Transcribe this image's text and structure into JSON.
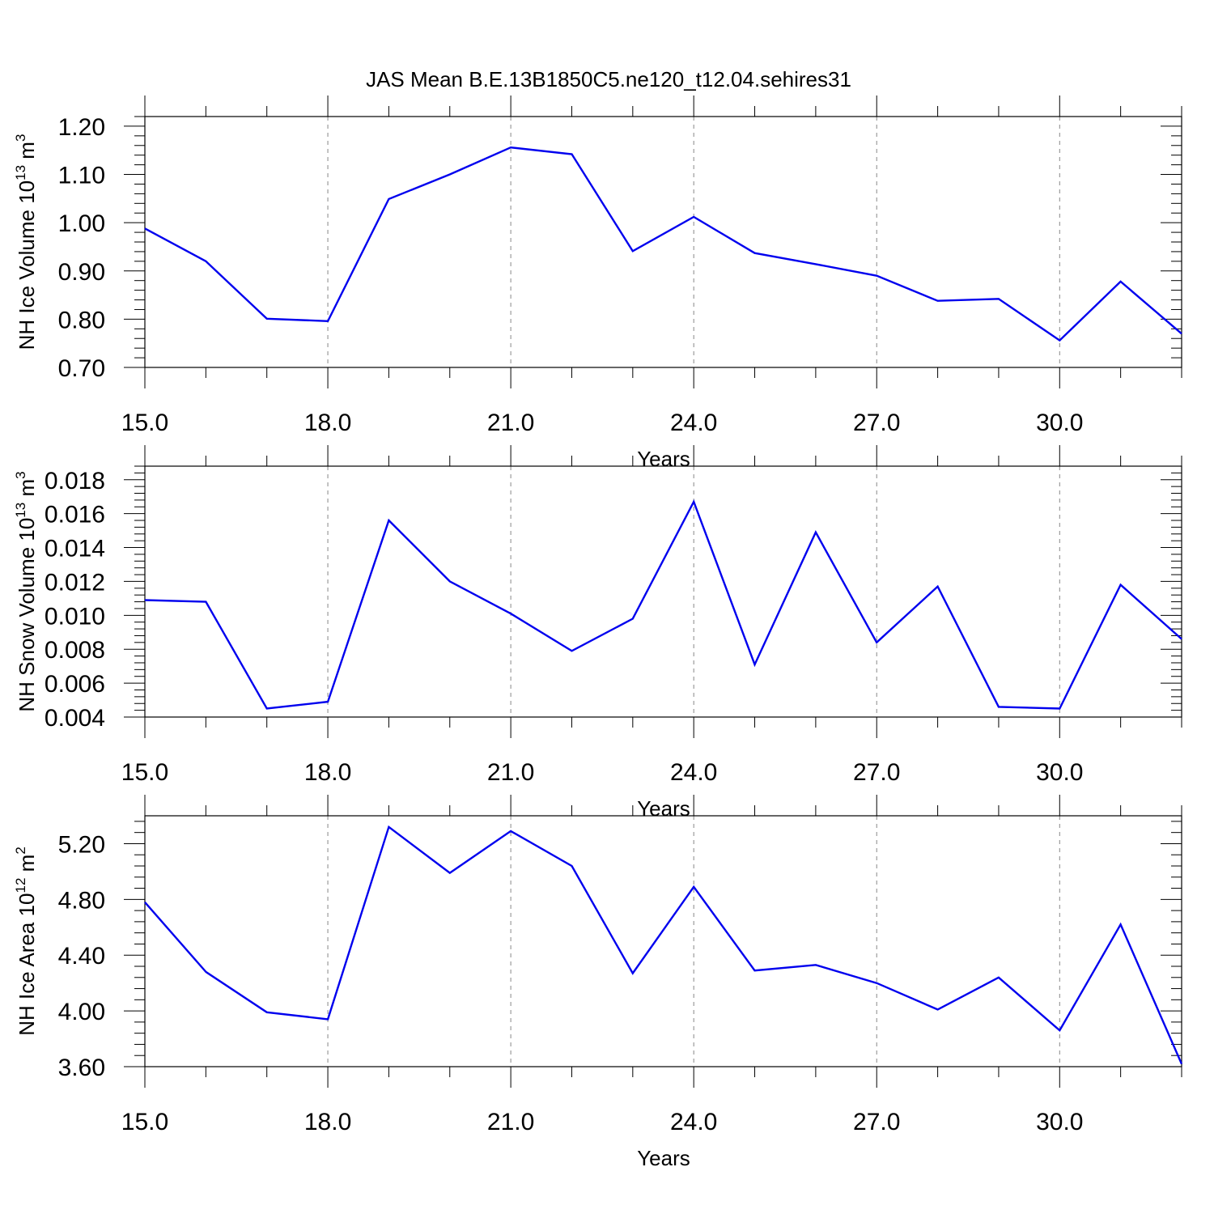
{
  "title": "JAS Mean B.E.13B1850C5.ne120_t12.04.sehires31",
  "colors": {
    "series": "#0000ee",
    "grid": "#888888",
    "axes": "#000000"
  },
  "chart_data": [
    {
      "type": "line",
      "ylabel_text": "NH Ice Volume 10",
      "ylabel_exp": "13",
      "ylabel_unit": " m",
      "ylabel_unit_exp": "3",
      "xlabel": "Years",
      "xlim": [
        15,
        32
      ],
      "ylim": [
        0.7,
        1.22
      ],
      "xticks": [
        15,
        18,
        21,
        24,
        27,
        30
      ],
      "xtick_labels": [
        "15.0",
        "18.0",
        "21.0",
        "24.0",
        "27.0",
        "30.0"
      ],
      "yticks": [
        0.7,
        0.8,
        0.9,
        1.0,
        1.1,
        1.2
      ],
      "ytick_labels": [
        "0.70",
        "0.80",
        "0.90",
        "1.00",
        "1.10",
        "1.20"
      ],
      "grid": "vertical dashed",
      "x": [
        15,
        16,
        17,
        18,
        19,
        20,
        21,
        22,
        23,
        24,
        25,
        26,
        27,
        28,
        29,
        30,
        31,
        32
      ],
      "values": [
        0.988,
        0.92,
        0.801,
        0.796,
        1.049,
        1.1,
        1.156,
        1.142,
        0.941,
        1.012,
        0.937,
        0.914,
        0.89,
        0.838,
        0.842,
        0.756,
        0.878,
        0.77
      ]
    },
    {
      "type": "line",
      "ylabel_text": "NH Snow Volume 10",
      "ylabel_exp": "13",
      "ylabel_unit": " m",
      "ylabel_unit_exp": "3",
      "xlabel": "Years",
      "xlim": [
        15,
        32
      ],
      "ylim": [
        0.004,
        0.0188
      ],
      "xticks": [
        15,
        18,
        21,
        24,
        27,
        30
      ],
      "xtick_labels": [
        "15.0",
        "18.0",
        "21.0",
        "24.0",
        "27.0",
        "30.0"
      ],
      "yticks": [
        0.004,
        0.006,
        0.008,
        0.01,
        0.012,
        0.014,
        0.016,
        0.018
      ],
      "ytick_labels": [
        "0.004",
        "0.006",
        "0.008",
        "0.010",
        "0.012",
        "0.014",
        "0.016",
        "0.018"
      ],
      "grid": "vertical dashed",
      "x": [
        15,
        16,
        17,
        18,
        19,
        20,
        21,
        22,
        23,
        24,
        25,
        26,
        27,
        28,
        29,
        30,
        31,
        32
      ],
      "values": [
        0.0109,
        0.0108,
        0.0045,
        0.0049,
        0.0156,
        0.012,
        0.0101,
        0.0079,
        0.0098,
        0.0167,
        0.0071,
        0.0149,
        0.0084,
        0.0117,
        0.0046,
        0.0045,
        0.0118,
        0.0086
      ]
    },
    {
      "type": "line",
      "ylabel_text": "NH Ice Area 10",
      "ylabel_exp": "12",
      "ylabel_unit": " m",
      "ylabel_unit_exp": "2",
      "xlabel": "Years",
      "xlim": [
        15,
        32
      ],
      "ylim": [
        3.6,
        5.4
      ],
      "xticks": [
        15,
        18,
        21,
        24,
        27,
        30
      ],
      "xtick_labels": [
        "15.0",
        "18.0",
        "21.0",
        "24.0",
        "27.0",
        "30.0"
      ],
      "yticks": [
        3.6,
        4.0,
        4.4,
        4.8,
        5.2
      ],
      "ytick_labels": [
        "3.60",
        "4.00",
        "4.40",
        "4.80",
        "5.20"
      ],
      "grid": "vertical dashed",
      "x": [
        15,
        16,
        17,
        18,
        19,
        20,
        21,
        22,
        23,
        24,
        25,
        26,
        27,
        28,
        29,
        30,
        31,
        32
      ],
      "values": [
        4.78,
        4.28,
        3.99,
        3.94,
        5.32,
        4.99,
        5.29,
        5.04,
        4.27,
        4.89,
        4.29,
        4.33,
        4.2,
        4.01,
        4.24,
        3.86,
        4.62,
        3.62
      ]
    }
  ]
}
